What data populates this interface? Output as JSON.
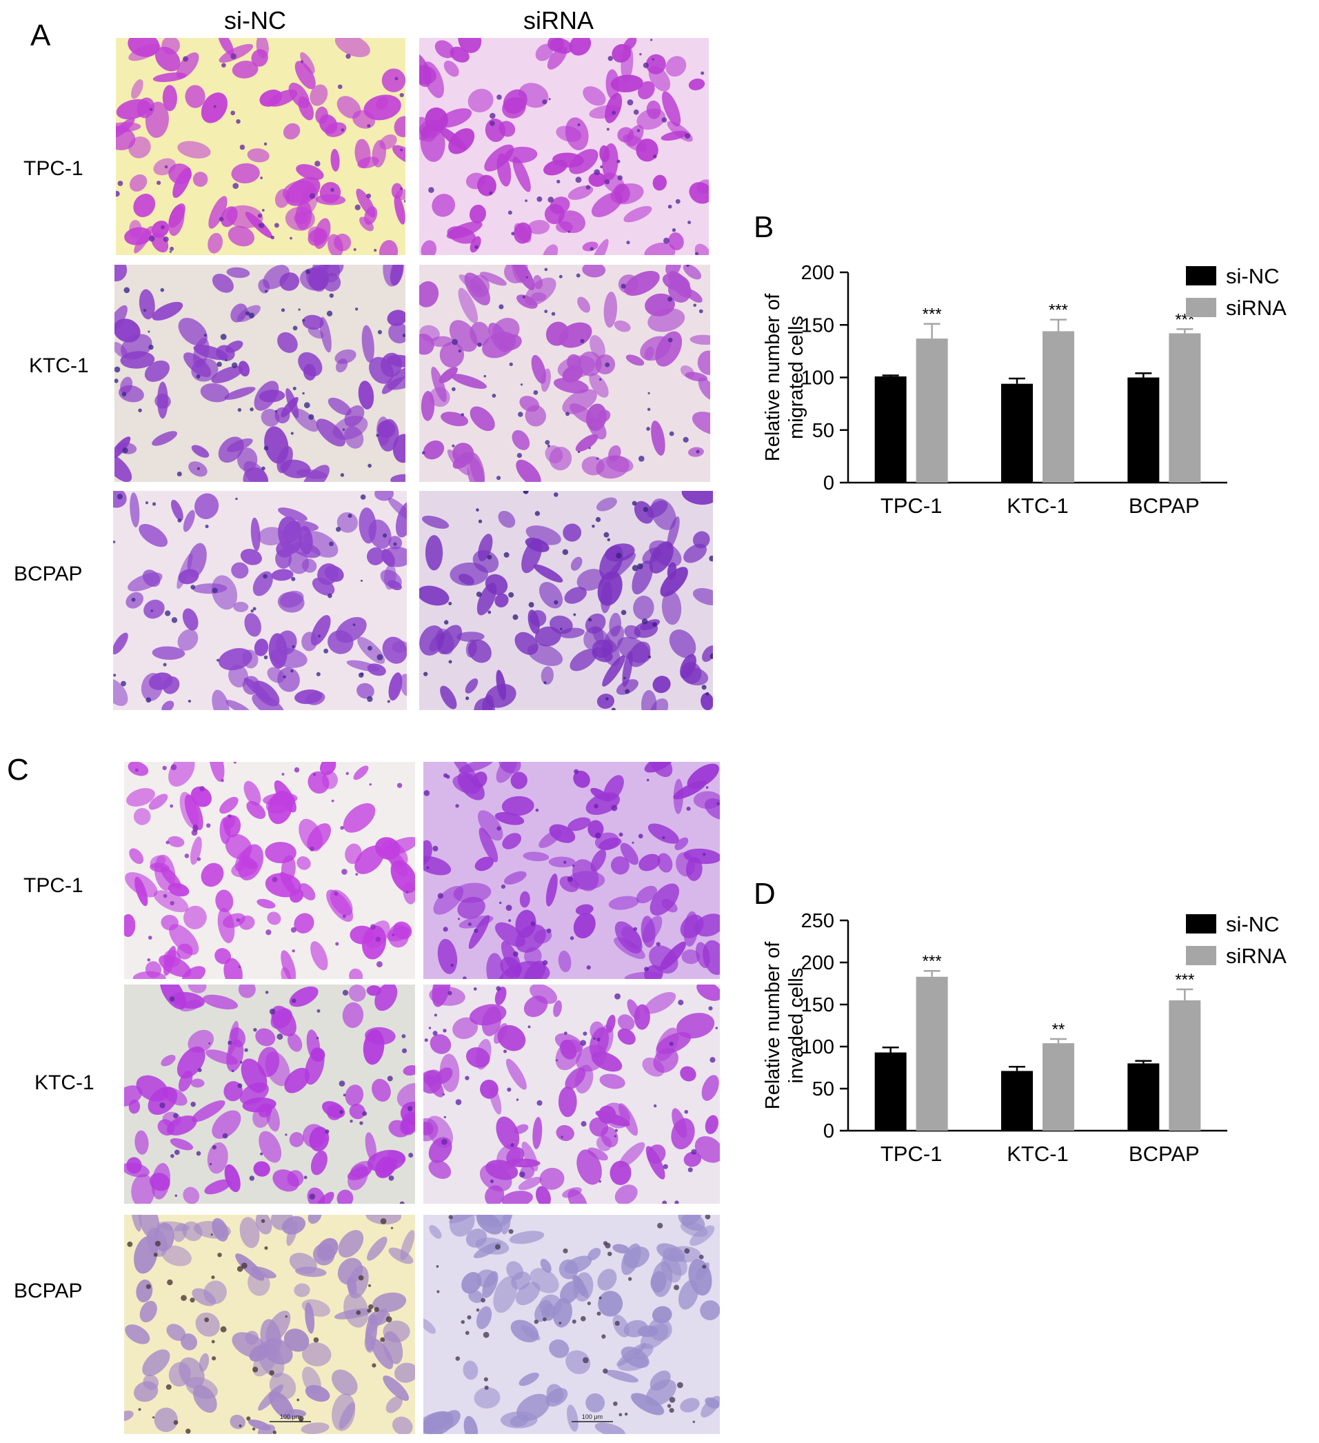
{
  "panel_letters": [
    "A",
    "B",
    "C",
    "D"
  ],
  "column_headers": [
    "si-NC",
    "siRNA"
  ],
  "row_labels": [
    "TPC-1",
    "KTC-1",
    "BCPAP"
  ],
  "scale_bar_label": "100 μm",
  "image_styles": {
    "A_TPC1_siNC": {
      "bg": "#f4efb0",
      "cell": "#c23fd6",
      "dark": "#6d2aa8"
    },
    "A_TPC1_siRNA": {
      "bg": "#f1d6ef",
      "cell": "#b83ad2",
      "dark": "#5c2aa0"
    },
    "A_KTC1_siNC": {
      "bg": "#e8e1dc",
      "cell": "#8a3bc8",
      "dark": "#3c2a8a"
    },
    "A_KTC1_siRNA": {
      "bg": "#ece0e6",
      "cell": "#b04fd0",
      "dark": "#4a2a96"
    },
    "A_BCPAP_siNC": {
      "bg": "#efe4ec",
      "cell": "#8e44cc",
      "dark": "#3e2c8e"
    },
    "A_BCPAP_siRNA": {
      "bg": "#e4d8e8",
      "cell": "#7b33c0",
      "dark": "#3a237f"
    },
    "C_TPC1_siNC": {
      "bg": "#f2eeee",
      "cell": "#c13ee0",
      "dark": "#8d2fc0"
    },
    "C_TPC1_siRNA": {
      "bg": "#d8b8ea",
      "cell": "#9a36d4",
      "dark": "#6c22b0"
    },
    "C_KTC1_siNC": {
      "bg": "#dfe0da",
      "cell": "#b339de",
      "dark": "#5a2b9c"
    },
    "C_KTC1_siRNA": {
      "bg": "#ece5ee",
      "cell": "#b040d8",
      "dark": "#6428aa"
    },
    "C_BCPAP_siNC": {
      "bg": "#f3ecc2",
      "cell": "#a487c8",
      "dark": "#4a3a3a"
    },
    "C_BCPAP_siRNA": {
      "bg": "#e2dcef",
      "cell": "#9a8fcc",
      "dark": "#4a3f5a"
    }
  },
  "chart_data": [
    {
      "type": "bar",
      "panel": "B",
      "ylabel": [
        "Relative number of",
        "migrated cells"
      ],
      "categories": [
        "TPC-1",
        "KTC-1",
        "BCPAP"
      ],
      "series": [
        {
          "name": "si-NC",
          "color": "#000000",
          "values": [
            101,
            94,
            100
          ],
          "errors": [
            1,
            5,
            4
          ]
        },
        {
          "name": "siRNA",
          "color": "#a6a6a6",
          "values": [
            137,
            144,
            142
          ],
          "errors": [
            14,
            11,
            4
          ]
        }
      ],
      "significance": [
        [
          "",
          "***"
        ],
        [
          "",
          "***"
        ],
        [
          "",
          "***"
        ]
      ],
      "ylim": [
        0,
        200
      ],
      "yticks": [
        0,
        50,
        100,
        150,
        200
      ],
      "legend": "right"
    },
    {
      "type": "bar",
      "panel": "D",
      "ylabel": [
        "Relative number of",
        "invaded cells"
      ],
      "categories": [
        "TPC-1",
        "KTC-1",
        "BCPAP"
      ],
      "series": [
        {
          "name": "si-NC",
          "color": "#000000",
          "values": [
            93,
            71,
            80
          ],
          "errors": [
            6,
            5,
            3
          ]
        },
        {
          "name": "siRNA",
          "color": "#a6a6a6",
          "values": [
            183,
            104,
            155
          ],
          "errors": [
            7,
            5,
            13
          ]
        }
      ],
      "significance": [
        [
          "",
          "***"
        ],
        [
          "",
          "**"
        ],
        [
          "",
          "***"
        ]
      ],
      "ylim": [
        0,
        250
      ],
      "yticks": [
        0,
        50,
        100,
        150,
        200,
        250
      ],
      "legend": "right"
    }
  ]
}
